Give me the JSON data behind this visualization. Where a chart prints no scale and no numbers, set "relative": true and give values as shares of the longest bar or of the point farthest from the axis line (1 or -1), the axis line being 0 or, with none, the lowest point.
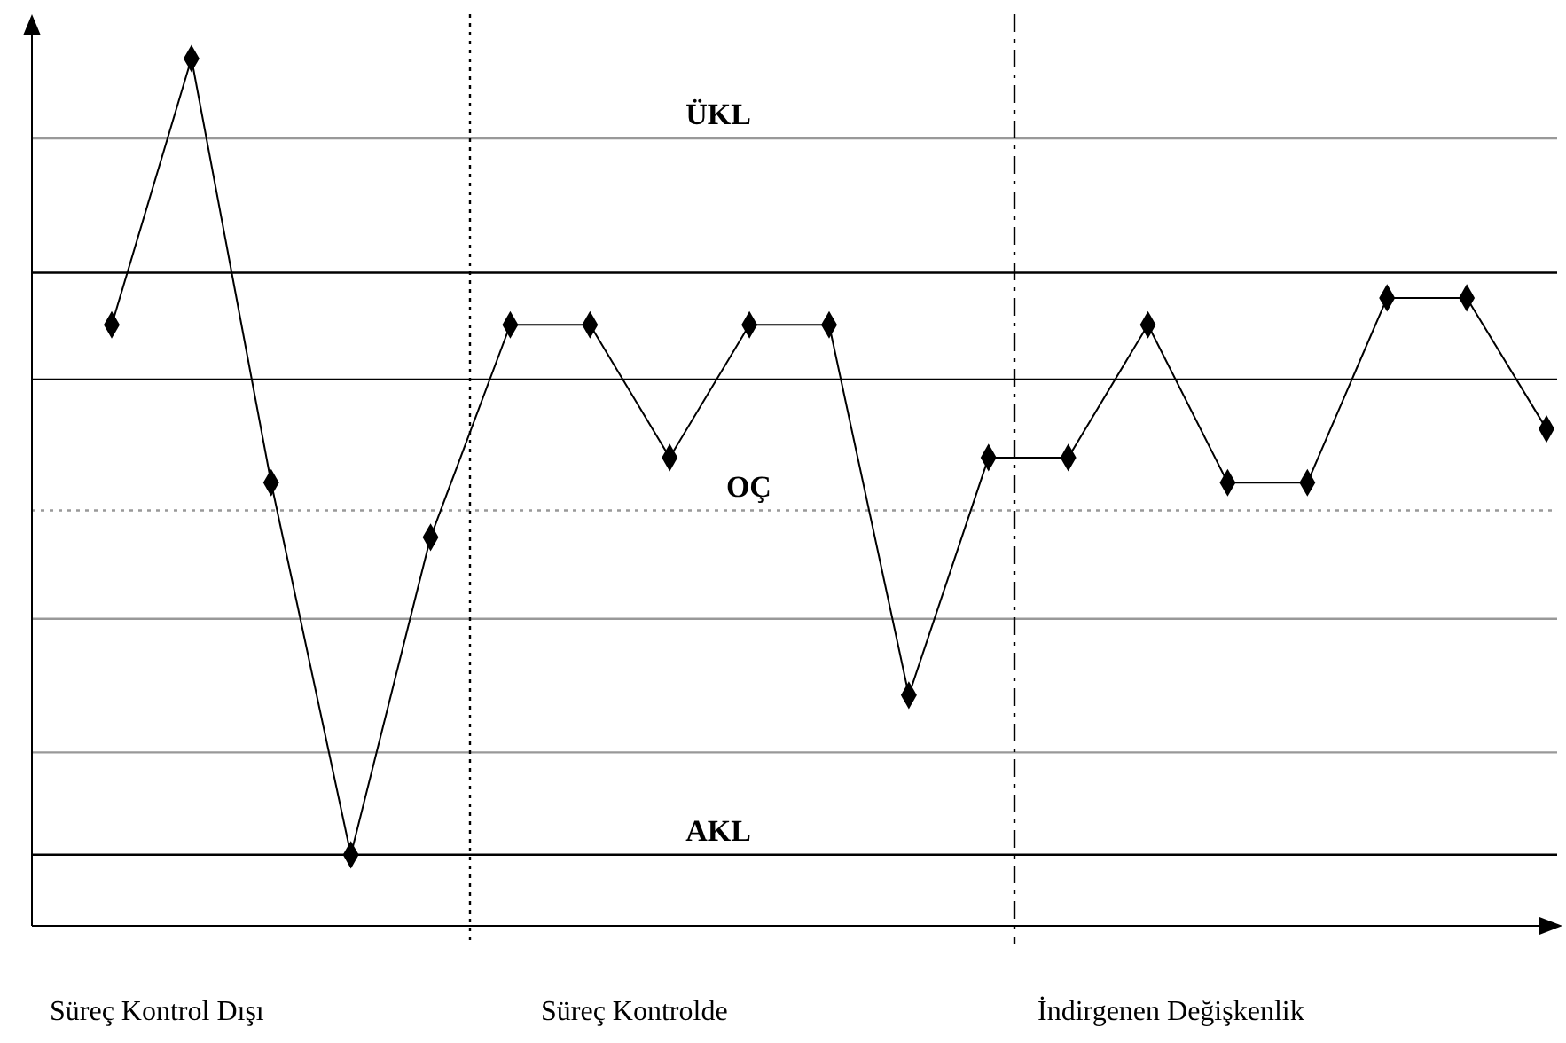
{
  "chart_data": {
    "type": "line",
    "relative": true,
    "marker": "diamond",
    "line_style": "solid",
    "categories": [
      null,
      null,
      null,
      null,
      null,
      null,
      null,
      null,
      null,
      null,
      null,
      null,
      null,
      null,
      null,
      null,
      null,
      null,
      null
    ],
    "series": [
      {
        "color": "#000000",
        "values": [
          0.693,
          1,
          0.511,
          0.082,
          0.448,
          0.693,
          0.693,
          0.54,
          0.693,
          0.693,
          0.266,
          0.54,
          0.54,
          0.693,
          0.511,
          0.511,
          0.724,
          0.724,
          0.573
        ]
      }
    ],
    "ref_lines": [
      {
        "axis": "y",
        "value": 0.908,
        "label": "ÜKL",
        "color": "#999999",
        "line_style": "solid"
      },
      {
        "axis": "y",
        "value": 0.753,
        "label": null,
        "color": "#000000",
        "line_style": "solid"
      },
      {
        "axis": "y",
        "value": 0.63,
        "label": null,
        "color": "#000000",
        "line_style": "solid"
      },
      {
        "axis": "y",
        "value": 0.479,
        "label": "OÇ",
        "color": "#999999",
        "line_style": "dotted"
      },
      {
        "axis": "y",
        "value": 0.354,
        "label": null,
        "color": "#999999",
        "line_style": "solid"
      },
      {
        "axis": "y",
        "value": 0.2,
        "label": null,
        "color": "#999999",
        "line_style": "solid"
      },
      {
        "axis": "y",
        "value": 0.082,
        "label": "AKL",
        "color": "#000000",
        "line_style": "solid"
      }
    ],
    "annotations": [
      "Süreç Kontrol Dışı",
      "Süreç Kontrolde",
      "İndirgenen Değişkenlik"
    ]
  }
}
